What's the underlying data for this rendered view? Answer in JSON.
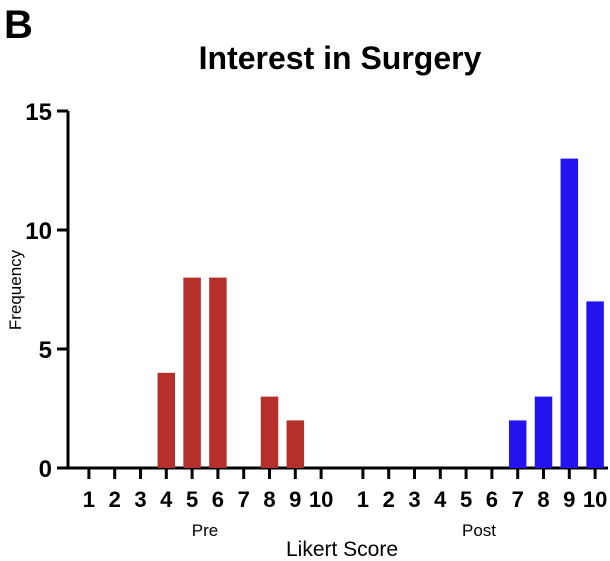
{
  "panel_label": "B",
  "chart_data": {
    "type": "bar",
    "title": "Interest in Surgery",
    "xlabel": "Likert Score",
    "ylabel": "Frequency",
    "ylim": [
      0,
      15
    ],
    "yticks": [
      0,
      5,
      10,
      15
    ],
    "grid": false,
    "groups": [
      {
        "name": "Pre",
        "color": "#b5302a",
        "categories": [
          "1",
          "2",
          "3",
          "4",
          "5",
          "6",
          "7",
          "8",
          "9",
          "10"
        ],
        "values": [
          0,
          0,
          0,
          4,
          8,
          8,
          0,
          3,
          2,
          0
        ]
      },
      {
        "name": "Post",
        "color": "#2314ef",
        "categories": [
          "1",
          "2",
          "3",
          "4",
          "5",
          "6",
          "7",
          "8",
          "9",
          "10"
        ],
        "values": [
          0,
          0,
          0,
          0,
          0,
          0,
          2,
          3,
          13,
          7
        ]
      }
    ]
  }
}
